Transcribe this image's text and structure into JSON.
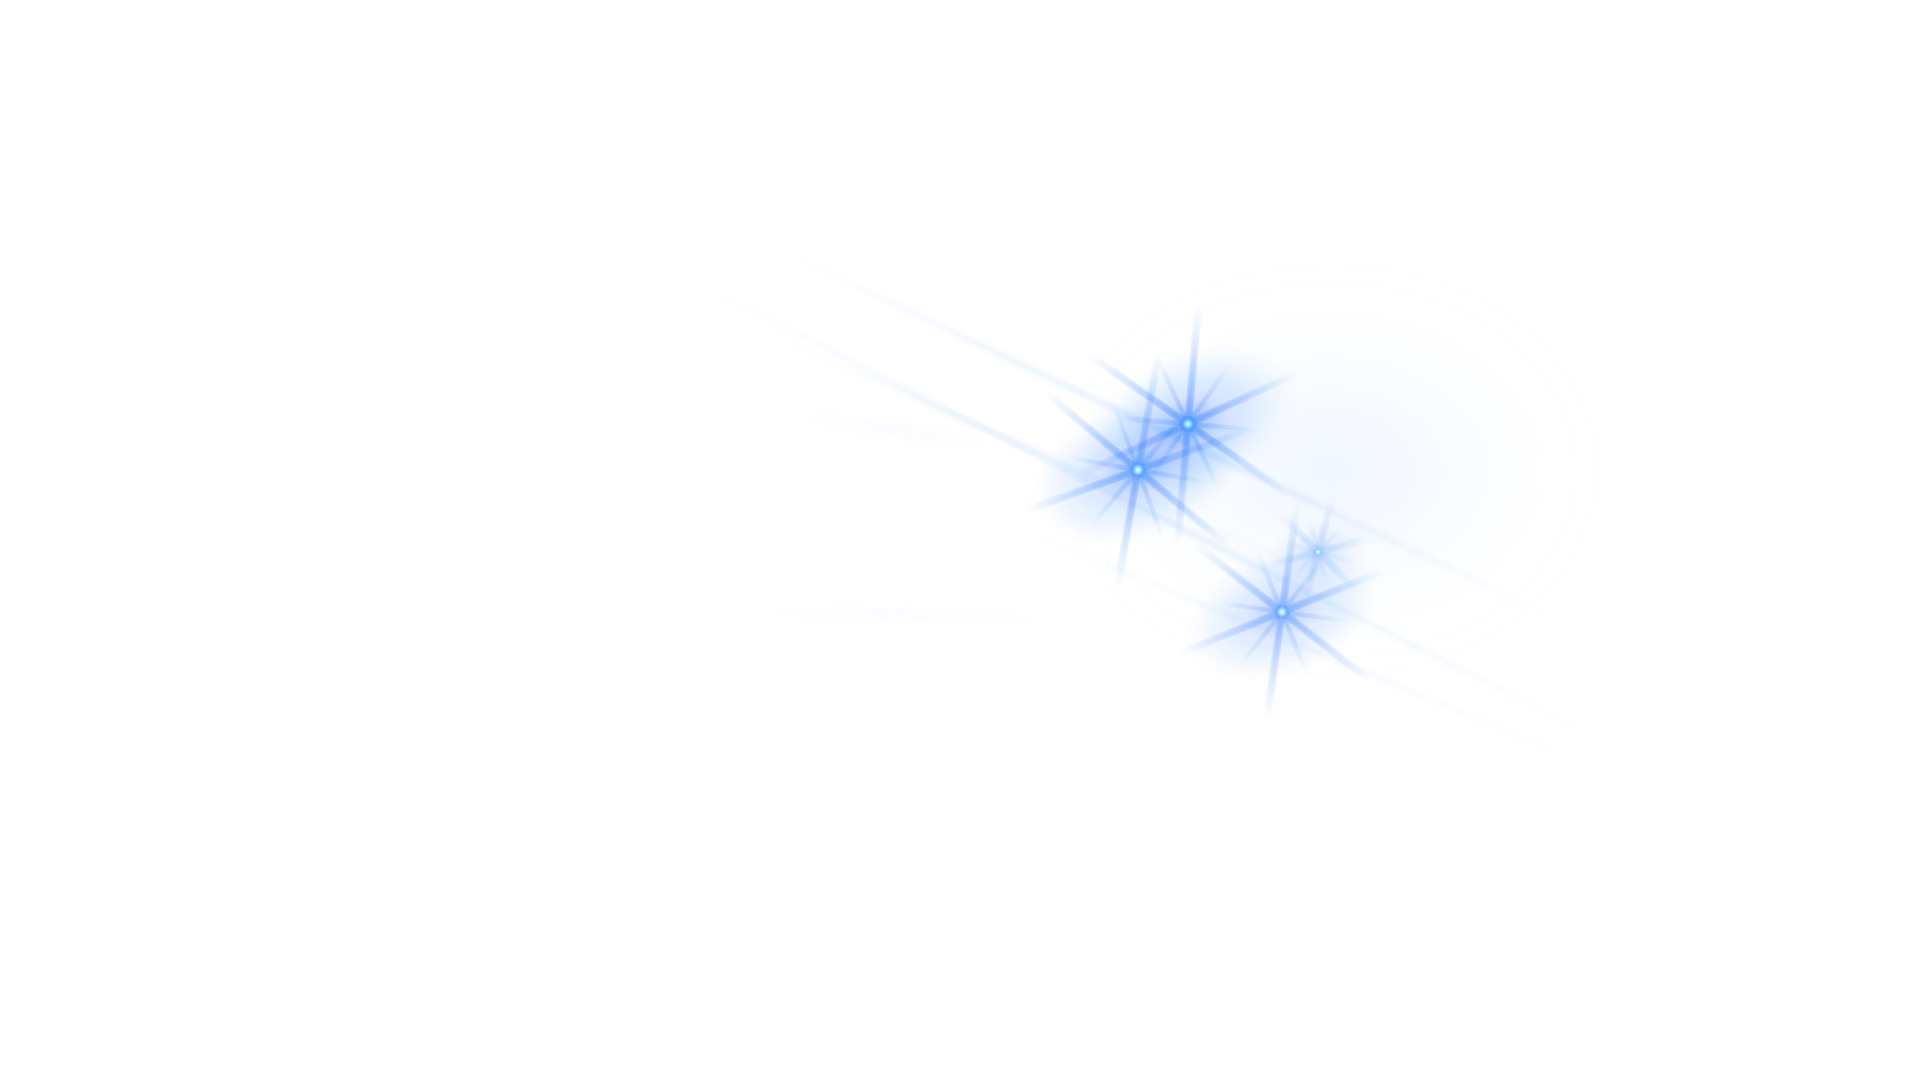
{
  "scene": {
    "background": "#ffffff",
    "flare_color": "#1f6dff",
    "flare_core_color": "#8fe6ff",
    "sparkles": [
      {
        "name": "sparkle-upper",
        "strength": 1.0
      },
      {
        "name": "sparkle-middle",
        "strength": 0.95
      },
      {
        "name": "sparkle-small",
        "strength": 0.45
      },
      {
        "name": "sparkle-lower",
        "strength": 0.85
      }
    ]
  }
}
